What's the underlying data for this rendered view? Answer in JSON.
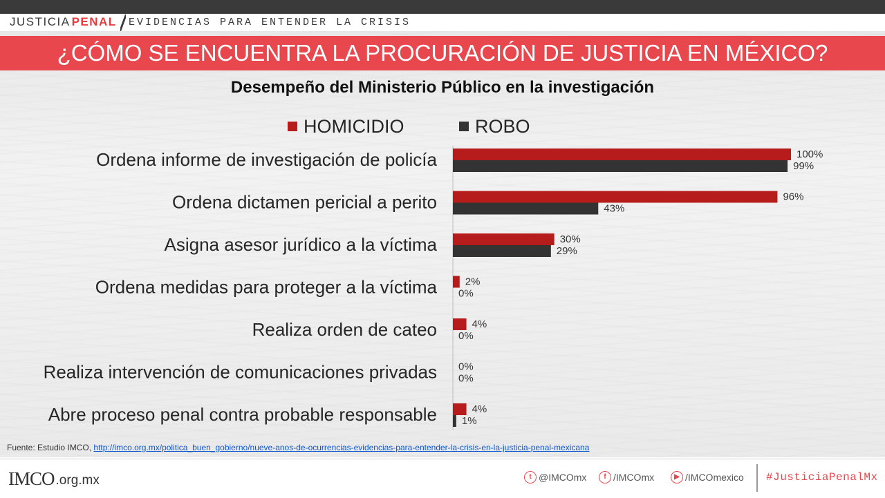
{
  "header": {
    "brand_left": "JUSTICIA",
    "brand_right": "PENAL",
    "tagline": "EVIDENCIAS PARA ENTENDER LA CRISIS",
    "title": "¿CÓMO SE ENCUENTRA LA PROCURACIÓN DE JUSTICIA EN MÉXICO?"
  },
  "chart_data": {
    "type": "bar",
    "orientation": "horizontal",
    "title": "Desempeño del Ministerio Público en la investigación",
    "categories": [
      "Ordena informe de investigación de policía",
      "Ordena dictamen pericial a perito",
      "Asigna asesor jurídico a la víctima",
      "Ordena medidas para proteger a la víctima",
      "Realiza orden de cateo",
      "Realiza intervención de comunicaciones privadas",
      "Abre proceso penal contra probable responsable"
    ],
    "series": [
      {
        "name": "HOMICIDIO",
        "color": "#b71c1c",
        "values": [
          100,
          96,
          30,
          2,
          4,
          0,
          4
        ],
        "labels": [
          "100%",
          "96%",
          "30%",
          "2%",
          "4%",
          "0%",
          "4%"
        ]
      },
      {
        "name": "ROBO",
        "color": "#333333",
        "values": [
          99,
          43,
          29,
          0,
          0,
          0,
          1
        ],
        "labels": [
          "99%",
          "43%",
          "29%",
          "0%",
          "0%",
          "0%",
          "1%"
        ]
      }
    ],
    "xlim": [
      0,
      100
    ],
    "grid": false,
    "legend_position": "top"
  },
  "source": {
    "prefix": "Fuente: Estudio IMCO, ",
    "link": "http://imco.org.mx/politica_buen_gobierno/nueve-anos-de-ocurrencias-evidencias-para-entender-la-crisis-en-la-justicia-penal-mexicana"
  },
  "footer": {
    "logo_text": "IMCO",
    "logo_domain": ".org.mx",
    "twitter": "@IMCOmx",
    "facebook": "/IMCOmx",
    "youtube": "/IMCOmexico",
    "hashtag": "#JusticiaPenalMx",
    "icons": [
      "twitter-icon",
      "facebook-icon",
      "youtube-icon"
    ]
  }
}
